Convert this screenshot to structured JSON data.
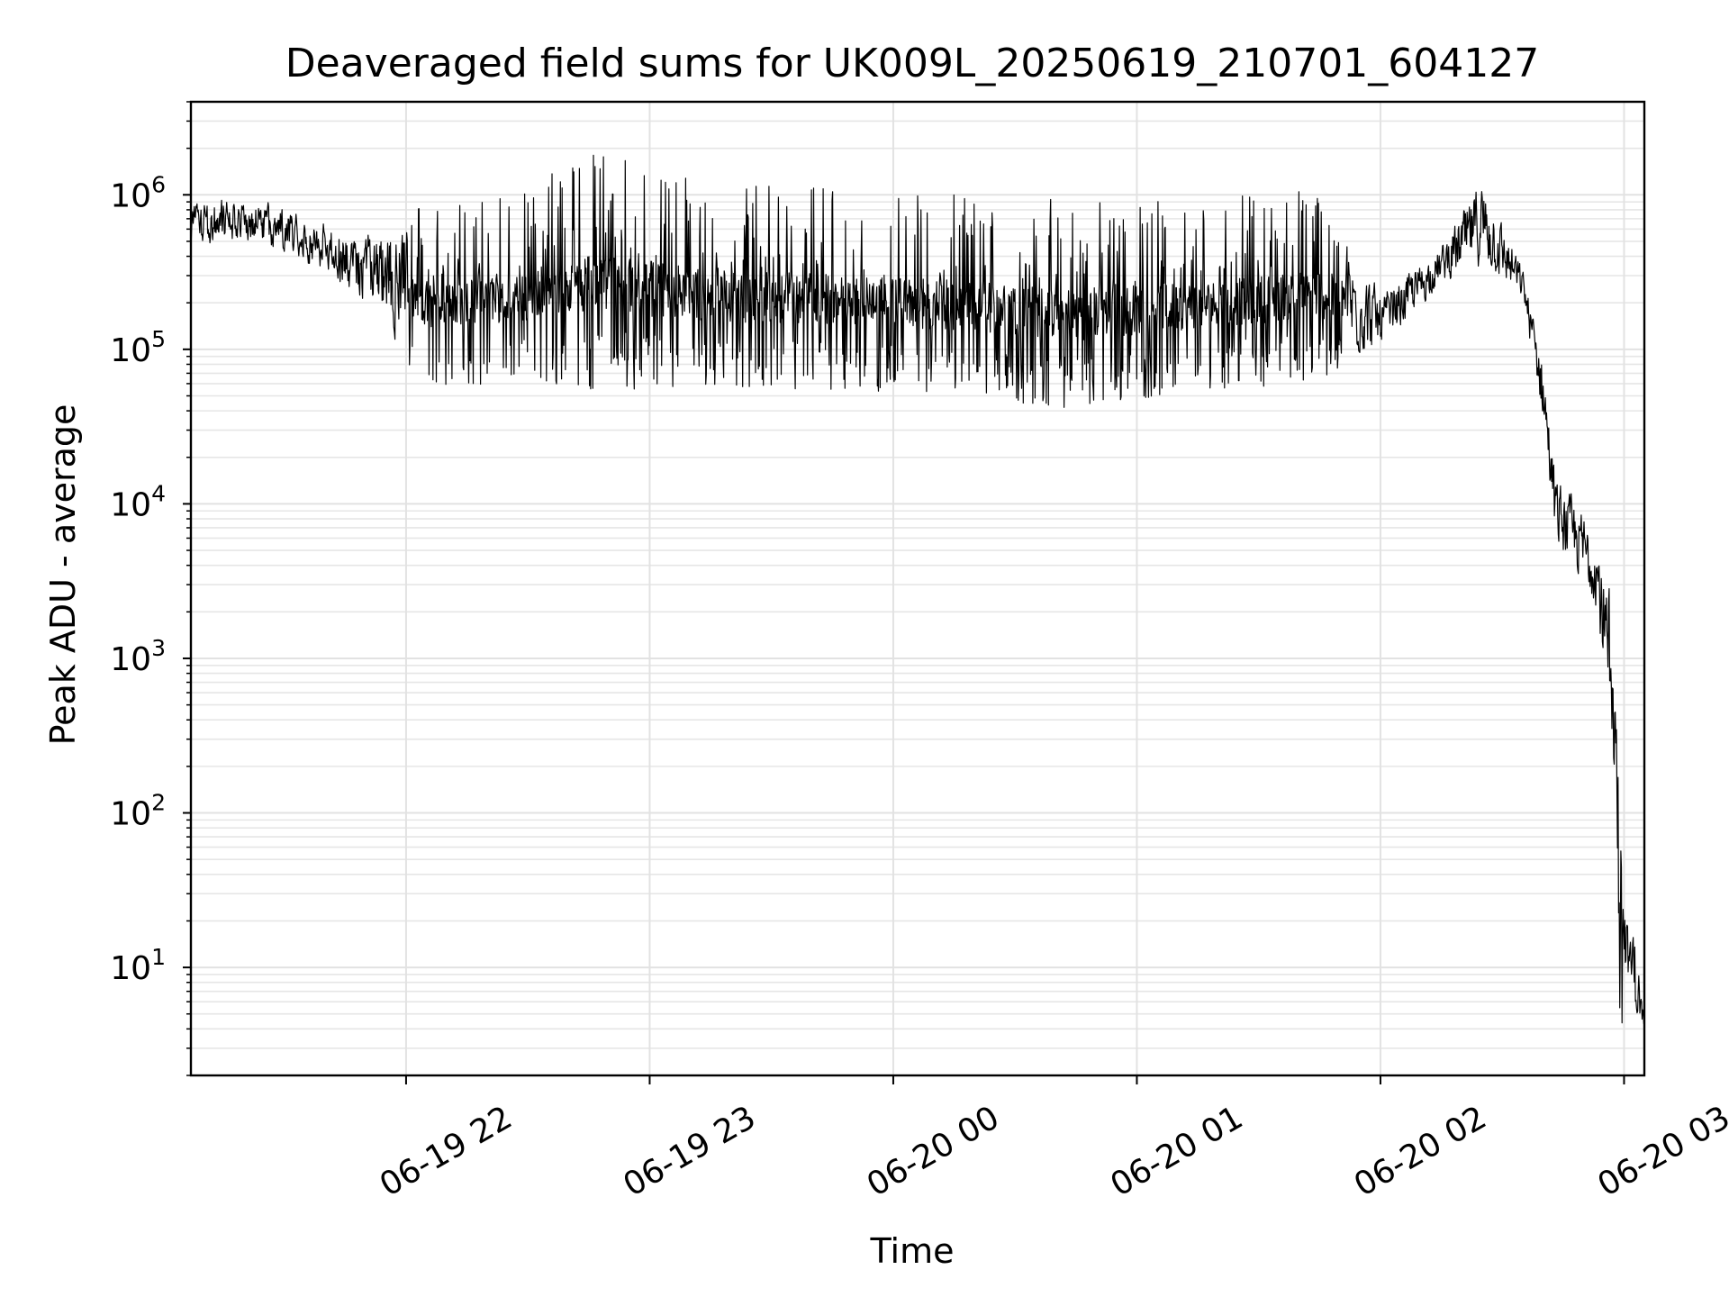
{
  "chart_data": {
    "type": "line",
    "title": "Deaveraged field sums for UK009L_20250619_210701_604127",
    "xlabel": "Time",
    "ylabel": "Peak ADU - average",
    "yscale": "log",
    "ylim": [
      2,
      4000000
    ],
    "xlim": [
      "2025-06-19 21:07:00",
      "2025-06-20 03:05:00"
    ],
    "grid": true,
    "grid_style": "major and minor, light gray",
    "line_color": "#000000",
    "x_ticks": [
      {
        "value": "2025-06-19 22:00",
        "label": "06-19 22"
      },
      {
        "value": "2025-06-19 23:00",
        "label": "06-19 23"
      },
      {
        "value": "2025-06-20 00:00",
        "label": "06-20 00"
      },
      {
        "value": "2025-06-20 01:00",
        "label": "06-20 01"
      },
      {
        "value": "2025-06-20 02:00",
        "label": "06-20 02"
      },
      {
        "value": "2025-06-20 03:00",
        "label": "06-20 03"
      }
    ],
    "y_ticks": [
      {
        "value": 10,
        "base": "10",
        "exp": "1"
      },
      {
        "value": 100,
        "base": "10",
        "exp": "2"
      },
      {
        "value": 1000,
        "base": "10",
        "exp": "3"
      },
      {
        "value": 10000,
        "base": "10",
        "exp": "4"
      },
      {
        "value": 100000,
        "base": "10",
        "exp": "5"
      },
      {
        "value": 1000000,
        "base": "10",
        "exp": "6"
      }
    ],
    "series": [
      {
        "color": "#000000",
        "envelope": [
          {
            "t": "2025-06-19 21:07",
            "low": 420000,
            "high": 1000000
          },
          {
            "t": "2025-06-19 21:20",
            "low": 480000,
            "high": 1000000
          },
          {
            "t": "2025-06-19 21:30",
            "low": 400000,
            "high": 900000
          },
          {
            "t": "2025-06-19 21:40",
            "low": 300000,
            "high": 700000
          },
          {
            "t": "2025-06-19 21:50",
            "low": 180000,
            "high": 600000
          },
          {
            "t": "2025-06-19 22:05",
            "low": 55000,
            "high": 900000
          },
          {
            "t": "2025-06-19 22:30",
            "low": 60000,
            "high": 1100000
          },
          {
            "t": "2025-06-19 22:45",
            "low": 55000,
            "high": 2000000
          },
          {
            "t": "2025-06-19 23:15",
            "low": 55000,
            "high": 1200000
          },
          {
            "t": "2025-06-19 23:45",
            "low": 55000,
            "high": 1100000
          },
          {
            "t": "2025-06-20 00:15",
            "low": 50000,
            "high": 1000000
          },
          {
            "t": "2025-06-20 00:45",
            "low": 40000,
            "high": 1000000
          },
          {
            "t": "2025-06-20 01:15",
            "low": 55000,
            "high": 900000
          },
          {
            "t": "2025-06-20 01:45",
            "low": 60000,
            "high": 1200000
          },
          {
            "t": "2025-06-20 02:00",
            "low": 90000,
            "high": 250000
          },
          {
            "t": "2025-06-20 02:15",
            "low": 250000,
            "high": 500000
          },
          {
            "t": "2025-06-20 02:25",
            "low": 300000,
            "high": 1500000
          },
          {
            "t": "2025-06-20 02:35",
            "low": 200000,
            "high": 350000
          },
          {
            "t": "2025-06-20 02:40",
            "low": 30000,
            "high": 100000
          },
          {
            "t": "2025-06-20 02:43",
            "low": 5000,
            "high": 17000
          },
          {
            "t": "2025-06-20 02:53",
            "low": 2000,
            "high": 8000
          },
          {
            "t": "2025-06-20 02:58",
            "low": 100,
            "high": 2000
          },
          {
            "t": "2025-06-20 02:59",
            "low": 3.9,
            "high": 200
          },
          {
            "t": "2025-06-20 03:05",
            "low": 3.8,
            "high": 4.6
          }
        ]
      }
    ]
  }
}
